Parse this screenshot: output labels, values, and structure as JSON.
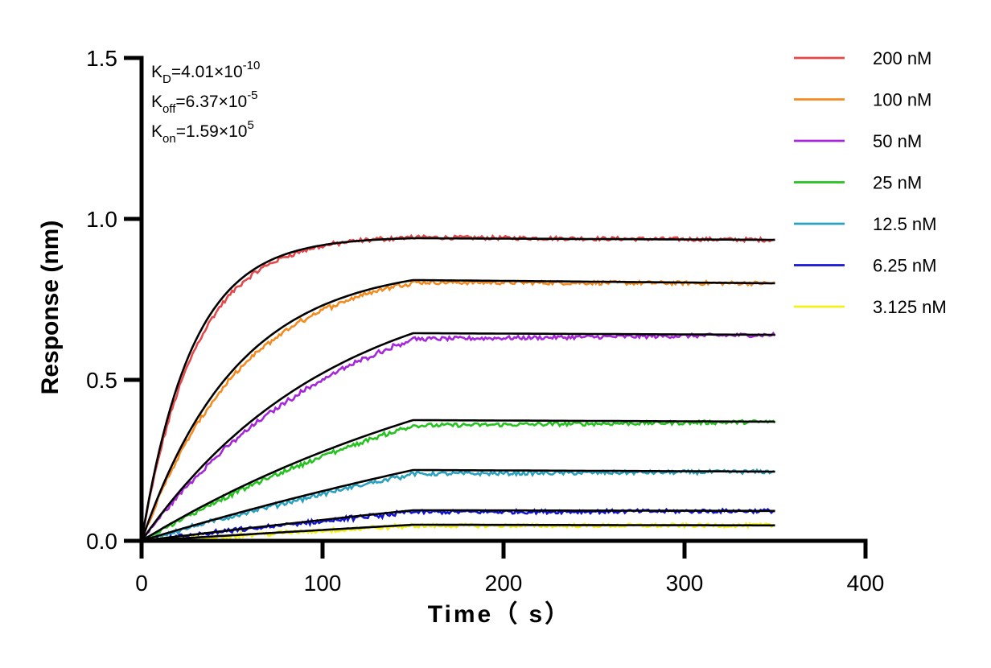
{
  "chart_data": {
    "type": "line",
    "title": "",
    "xlabel": "Time（ s）",
    "ylabel": "Response (nm)",
    "xlim": [
      0,
      400
    ],
    "ylim": [
      0,
      1.5
    ],
    "x_ticks": [
      "0",
      "100",
      "200",
      "300",
      "400"
    ],
    "y_ticks": [
      "0.0",
      "0.5",
      "1.0",
      "1.5"
    ],
    "x_tick_values": [
      0,
      100,
      200,
      300,
      400
    ],
    "y_tick_values": [
      0,
      0.5,
      1.0,
      1.5
    ],
    "grid": false,
    "legend_position": "right",
    "association_end_time": 150,
    "end_time": 350,
    "annotations": [
      {
        "base": "K",
        "sub": "D",
        "text": "=4.01×10",
        "sup": "-10"
      },
      {
        "base": "K",
        "sub": "off",
        "text": "=6.37×10",
        "sup": "-5"
      },
      {
        "base": "K",
        "sub": "on",
        "text": "=1.59×10",
        "sup": "5"
      }
    ],
    "fit_color": "#000000",
    "series": [
      {
        "name": "200 nM",
        "color": "#e8474a",
        "plateau": 0.94,
        "end_value": 0.935,
        "rate": 0.036
      },
      {
        "name": "100 nM",
        "color": "#f58a1f",
        "plateau": 0.81,
        "end_value": 0.8,
        "rate": 0.019
      },
      {
        "name": "50 nM",
        "color": "#a626d9",
        "plateau": 0.645,
        "end_value": 0.64,
        "rate": 0.0095
      },
      {
        "name": "25 nM",
        "color": "#26c21f",
        "plateau": 0.375,
        "end_value": 0.37,
        "rate": 0.0045
      },
      {
        "name": "12.5 nM",
        "color": "#2aa1bf",
        "plateau": 0.22,
        "end_value": 0.215,
        "rate": 0.0022
      },
      {
        "name": "6.25 nM",
        "color": "#1414d9",
        "plateau": 0.095,
        "end_value": 0.093,
        "rate": 0.0011
      },
      {
        "name": "3.125 nM",
        "color": "#f2f21a",
        "plateau": 0.05,
        "end_value": 0.048,
        "rate": 0.0006
      }
    ]
  }
}
